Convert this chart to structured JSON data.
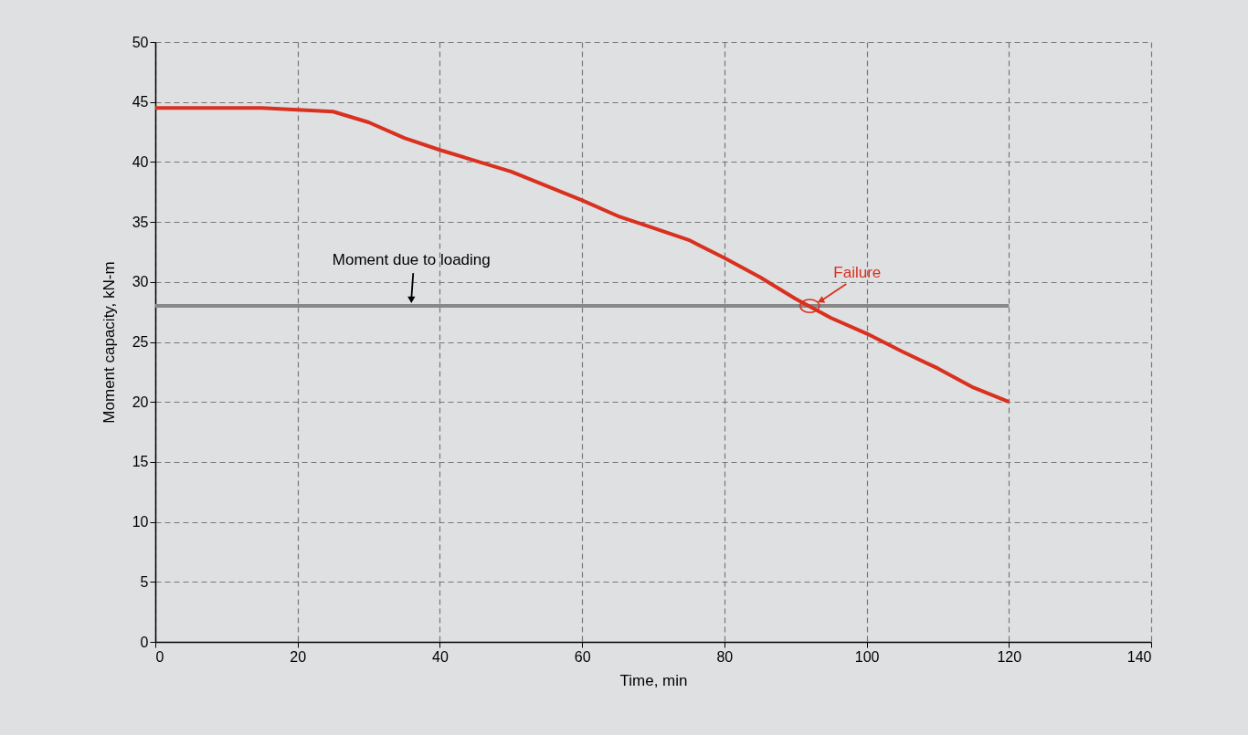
{
  "chart_data": {
    "type": "line",
    "xlabel": "Time, min",
    "ylabel": "Moment capacity, kN-m",
    "xlim": [
      0,
      140
    ],
    "xticks": [
      0,
      20,
      40,
      60,
      80,
      100,
      120,
      140
    ],
    "ylim": [
      0,
      50
    ],
    "yticks": [
      0,
      5,
      10,
      15,
      20,
      25,
      30,
      35,
      40,
      45,
      50
    ],
    "grid": true,
    "marker": "none",
    "line_style": "solid",
    "series": [
      {
        "color": "#d9301f",
        "x": [
          0,
          15,
          25,
          30,
          35,
          40,
          45,
          50,
          55,
          60,
          65,
          70,
          75,
          80,
          85,
          90,
          95,
          100,
          105,
          110,
          115,
          120
        ],
        "values": [
          44.5,
          44.5,
          44.2,
          43.3,
          42,
          41,
          40.1,
          39.2,
          38,
          36.8,
          35.5,
          34.5,
          33.5,
          32,
          30.4,
          28.6,
          27,
          25.7,
          24.2,
          22.8,
          21.2,
          20
        ]
      },
      {
        "color": "#888888",
        "x": [
          0,
          120
        ],
        "values": [
          28,
          28
        ]
      }
    ],
    "annotations": [
      {
        "text": "Moment due to loading",
        "x": 36,
        "y": 28
      },
      {
        "text": "Failure",
        "x": 92,
        "y": 28
      }
    ]
  }
}
